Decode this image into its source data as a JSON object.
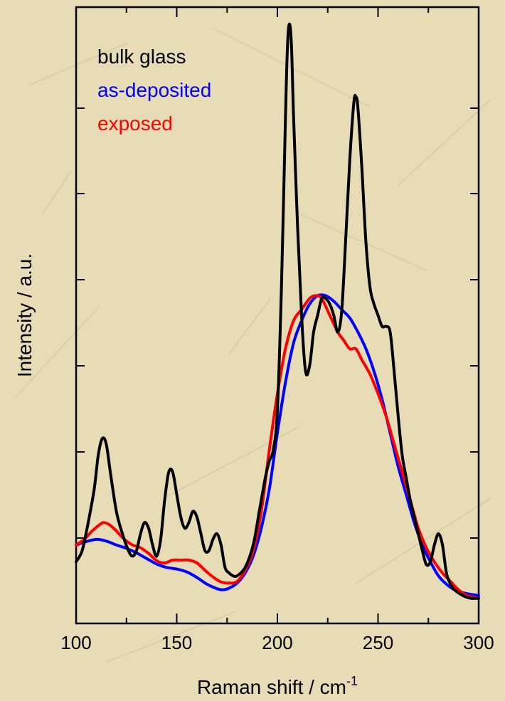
{
  "chart_data": {
    "type": "line",
    "xlabel": "Raman shift / cm",
    "xlabel_sup": "-1",
    "ylabel": "Intensity / a.u.",
    "xlim": [
      100,
      300
    ],
    "ylim": [
      -0.05,
      1.05
    ],
    "x_ticks": [
      100,
      150,
      200,
      250,
      300
    ],
    "x_tick_labels": [
      "100",
      "150",
      "200",
      "250",
      "300"
    ],
    "y_tick_labels_shown": false,
    "grid": false,
    "legend_position": "top-left",
    "series": [
      {
        "name": "bulk glass",
        "color": "#000000",
        "points": [
          [
            100,
            0.06
          ],
          [
            103,
            0.08
          ],
          [
            106,
            0.13
          ],
          [
            109,
            0.19
          ],
          [
            111,
            0.25
          ],
          [
            113,
            0.28
          ],
          [
            115,
            0.27
          ],
          [
            117,
            0.22
          ],
          [
            120,
            0.15
          ],
          [
            123,
            0.11
          ],
          [
            126,
            0.08
          ],
          [
            128,
            0.07
          ],
          [
            130,
            0.08
          ],
          [
            132,
            0.11
          ],
          [
            134,
            0.13
          ],
          [
            136,
            0.12
          ],
          [
            138,
            0.09
          ],
          [
            140,
            0.07
          ],
          [
            142,
            0.1
          ],
          [
            144,
            0.17
          ],
          [
            146,
            0.22
          ],
          [
            148,
            0.22
          ],
          [
            150,
            0.18
          ],
          [
            152,
            0.14
          ],
          [
            154,
            0.12
          ],
          [
            156,
            0.13
          ],
          [
            158,
            0.15
          ],
          [
            160,
            0.14
          ],
          [
            162,
            0.11
          ],
          [
            164,
            0.08
          ],
          [
            166,
            0.08
          ],
          [
            168,
            0.1
          ],
          [
            170,
            0.11
          ],
          [
            172,
            0.09
          ],
          [
            174,
            0.05
          ],
          [
            176,
            0.04
          ],
          [
            178,
            0.035
          ],
          [
            180,
            0.035
          ],
          [
            184,
            0.05
          ],
          [
            188,
            0.09
          ],
          [
            191,
            0.15
          ],
          [
            194,
            0.21
          ],
          [
            196,
            0.24
          ],
          [
            198,
            0.26
          ],
          [
            200,
            0.33
          ],
          [
            202,
            0.55
          ],
          [
            204,
            0.85
          ],
          [
            205,
            0.98
          ],
          [
            206,
            1.02
          ],
          [
            207,
            0.98
          ],
          [
            208,
            0.86
          ],
          [
            210,
            0.66
          ],
          [
            212,
            0.5
          ],
          [
            214,
            0.4
          ],
          [
            216,
            0.41
          ],
          [
            218,
            0.47
          ],
          [
            220,
            0.5
          ],
          [
            222,
            0.53
          ],
          [
            224,
            0.53
          ],
          [
            226,
            0.52
          ],
          [
            228,
            0.5
          ],
          [
            230,
            0.47
          ],
          [
            232,
            0.51
          ],
          [
            234,
            0.64
          ],
          [
            236,
            0.78
          ],
          [
            238,
            0.88
          ],
          [
            239,
            0.89
          ],
          [
            240,
            0.87
          ],
          [
            242,
            0.76
          ],
          [
            244,
            0.63
          ],
          [
            246,
            0.55
          ],
          [
            248,
            0.52
          ],
          [
            250,
            0.5
          ],
          [
            252,
            0.48
          ],
          [
            254,
            0.48
          ],
          [
            256,
            0.47
          ],
          [
            258,
            0.4
          ],
          [
            260,
            0.32
          ],
          [
            262,
            0.25
          ],
          [
            264,
            0.21
          ],
          [
            266,
            0.17
          ],
          [
            268,
            0.14
          ],
          [
            270,
            0.11
          ],
          [
            272,
            0.08
          ],
          [
            274,
            0.055
          ],
          [
            276,
            0.06
          ],
          [
            278,
            0.09
          ],
          [
            280,
            0.11
          ],
          [
            282,
            0.09
          ],
          [
            284,
            0.04
          ],
          [
            286,
            0.02
          ],
          [
            288,
            0.01
          ],
          [
            292,
            0.0
          ],
          [
            296,
            -0.005
          ],
          [
            300,
            -0.005
          ]
        ]
      },
      {
        "name": "as-deposited",
        "color": "#0000ff",
        "points": [
          [
            100,
            0.09
          ],
          [
            104,
            0.095
          ],
          [
            110,
            0.1
          ],
          [
            115,
            0.097
          ],
          [
            120,
            0.09
          ],
          [
            125,
            0.084
          ],
          [
            130,
            0.076
          ],
          [
            135,
            0.066
          ],
          [
            140,
            0.056
          ],
          [
            145,
            0.05
          ],
          [
            150,
            0.047
          ],
          [
            155,
            0.042
          ],
          [
            160,
            0.032
          ],
          [
            165,
            0.02
          ],
          [
            170,
            0.012
          ],
          [
            173,
            0.01
          ],
          [
            176,
            0.013
          ],
          [
            180,
            0.022
          ],
          [
            184,
            0.04
          ],
          [
            188,
            0.07
          ],
          [
            192,
            0.12
          ],
          [
            196,
            0.19
          ],
          [
            200,
            0.29
          ],
          [
            204,
            0.38
          ],
          [
            208,
            0.45
          ],
          [
            212,
            0.49
          ],
          [
            216,
            0.52
          ],
          [
            220,
            0.535
          ],
          [
            224,
            0.535
          ],
          [
            228,
            0.525
          ],
          [
            232,
            0.51
          ],
          [
            236,
            0.495
          ],
          [
            240,
            0.47
          ],
          [
            244,
            0.44
          ],
          [
            248,
            0.4
          ],
          [
            252,
            0.35
          ],
          [
            256,
            0.29
          ],
          [
            260,
            0.23
          ],
          [
            264,
            0.18
          ],
          [
            268,
            0.13
          ],
          [
            272,
            0.09
          ],
          [
            276,
            0.06
          ],
          [
            280,
            0.035
          ],
          [
            284,
            0.02
          ],
          [
            288,
            0.01
          ],
          [
            292,
            0.005
          ],
          [
            296,
            0.002
          ],
          [
            300,
            0.0
          ]
        ]
      },
      {
        "name": "exposed",
        "color": "#ff0000",
        "points": [
          [
            100,
            0.09
          ],
          [
            104,
            0.1
          ],
          [
            108,
            0.115
          ],
          [
            112,
            0.127
          ],
          [
            114,
            0.13
          ],
          [
            117,
            0.125
          ],
          [
            120,
            0.115
          ],
          [
            124,
            0.1
          ],
          [
            128,
            0.09
          ],
          [
            132,
            0.085
          ],
          [
            136,
            0.075
          ],
          [
            140,
            0.062
          ],
          [
            144,
            0.058
          ],
          [
            148,
            0.063
          ],
          [
            152,
            0.063
          ],
          [
            156,
            0.063
          ],
          [
            160,
            0.058
          ],
          [
            164,
            0.045
          ],
          [
            168,
            0.033
          ],
          [
            172,
            0.024
          ],
          [
            176,
            0.022
          ],
          [
            180,
            0.025
          ],
          [
            184,
            0.045
          ],
          [
            188,
            0.08
          ],
          [
            192,
            0.15
          ],
          [
            196,
            0.26
          ],
          [
            200,
            0.36
          ],
          [
            204,
            0.44
          ],
          [
            208,
            0.49
          ],
          [
            212,
            0.51
          ],
          [
            216,
            0.53
          ],
          [
            219,
            0.535
          ],
          [
            222,
            0.53
          ],
          [
            226,
            0.5
          ],
          [
            230,
            0.47
          ],
          [
            233,
            0.455
          ],
          [
            236,
            0.44
          ],
          [
            239,
            0.44
          ],
          [
            242,
            0.42
          ],
          [
            246,
            0.395
          ],
          [
            250,
            0.36
          ],
          [
            254,
            0.32
          ],
          [
            258,
            0.27
          ],
          [
            262,
            0.22
          ],
          [
            266,
            0.17
          ],
          [
            270,
            0.12
          ],
          [
            274,
            0.085
          ],
          [
            278,
            0.06
          ],
          [
            282,
            0.04
          ],
          [
            286,
            0.025
          ],
          [
            290,
            0.01
          ],
          [
            294,
            0.0
          ],
          [
            300,
            -0.005
          ]
        ]
      }
    ]
  }
}
